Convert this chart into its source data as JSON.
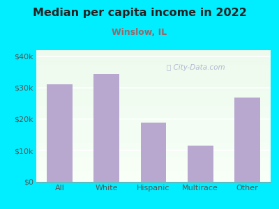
{
  "title": "Median per capita income in 2022",
  "subtitle": "Winslow, IL",
  "categories": [
    "All",
    "White",
    "Hispanic",
    "Multirace",
    "Other"
  ],
  "values": [
    31000,
    34500,
    19000,
    11500,
    27000
  ],
  "bar_color": "#b8a8d0",
  "background_outer": "#00eeff",
  "background_inner_top": "#f5fff5",
  "background_inner_bottom": "#e8f5e8",
  "title_color": "#222222",
  "subtitle_color": "#996666",
  "axis_color": "#555555",
  "yticks": [
    0,
    10000,
    20000,
    30000,
    40000
  ],
  "ytick_labels": [
    "$0",
    "$10k",
    "$20k",
    "$30k",
    "$40k"
  ],
  "ylim": [
    0,
    42000
  ],
  "watermark": "City-Data.com",
  "watermark_color": "#aaaacc",
  "grid_color": "#dddddd"
}
